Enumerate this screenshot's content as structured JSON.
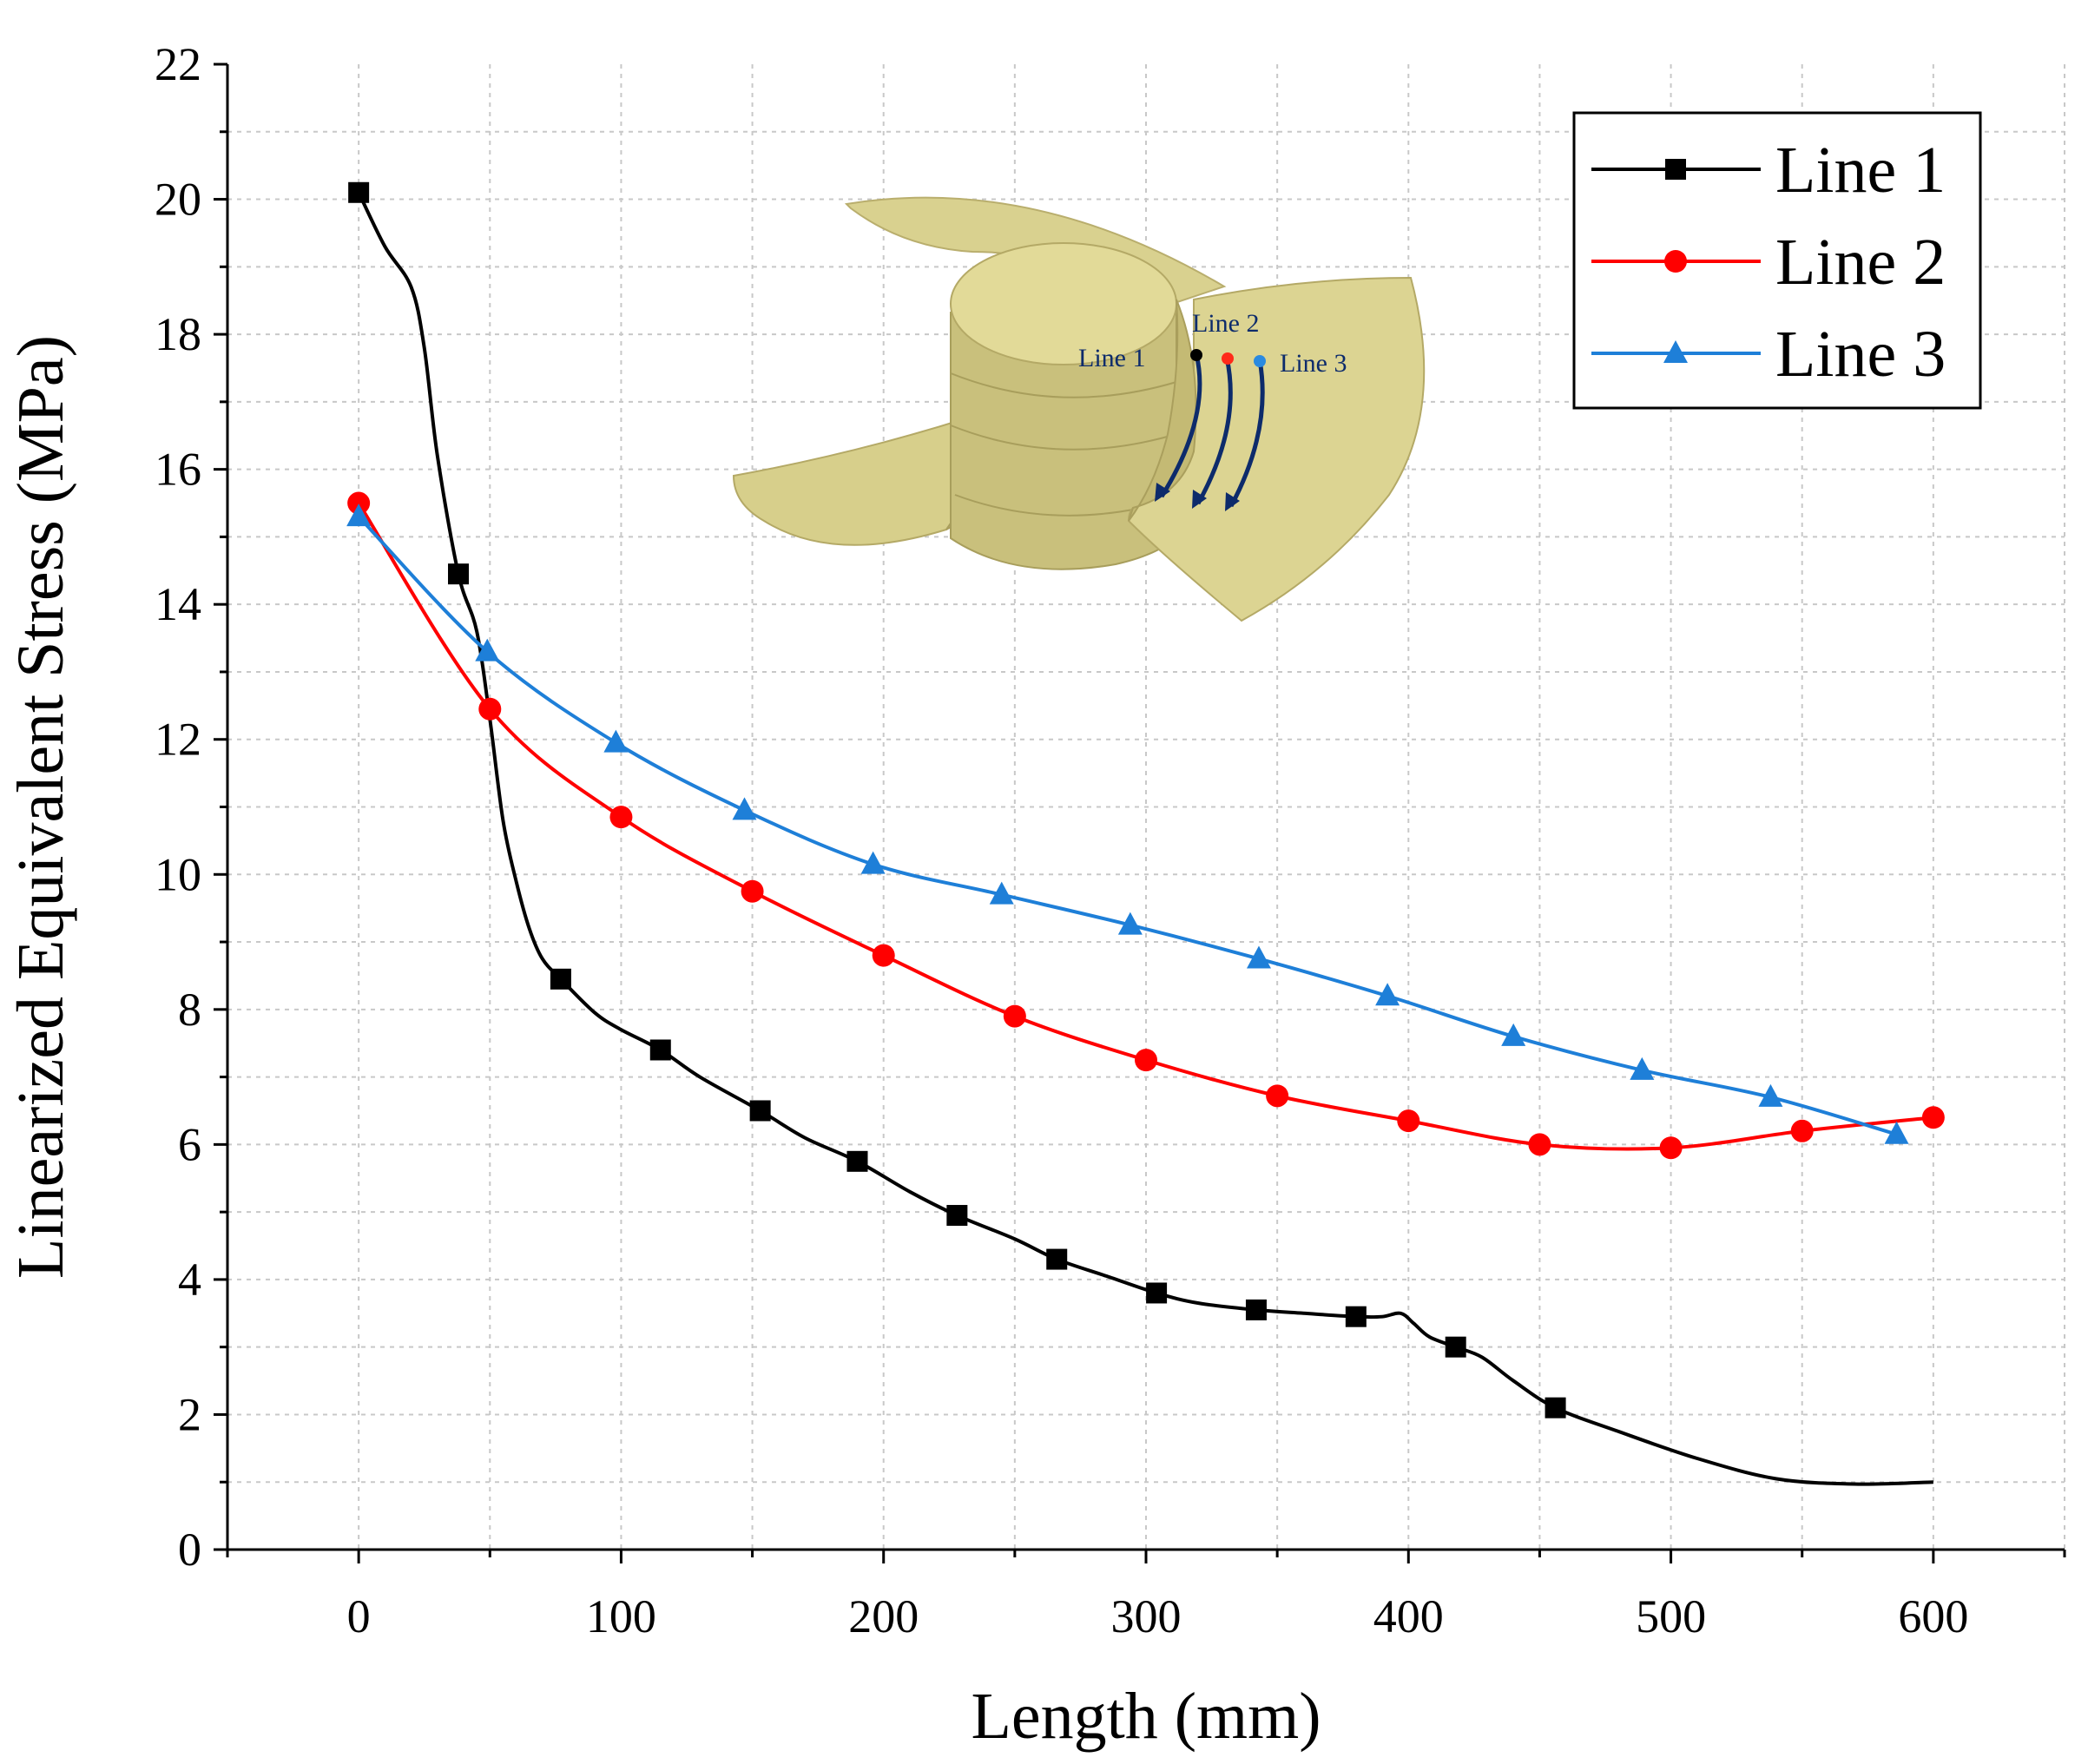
{
  "chart_data": {
    "type": "line",
    "title": "",
    "xlabel": "Length (mm)",
    "ylabel": "Linearized Equivalent Stress (MPa)",
    "xlim": [
      -50,
      650
    ],
    "ylim": [
      0,
      22
    ],
    "xticks": [
      0,
      100,
      200,
      300,
      400,
      500,
      600
    ],
    "yticks": [
      0,
      2,
      4,
      6,
      8,
      10,
      12,
      14,
      16,
      18,
      20,
      22
    ],
    "grid": true,
    "legend_position": "top-right",
    "series": [
      {
        "name": "Line 1",
        "color": "#000000",
        "marker": "square",
        "x": [
          0,
          38,
          77,
          115,
          153,
          190,
          228,
          266,
          304,
          342,
          380,
          418,
          456
        ],
        "y": [
          20.1,
          14.45,
          8.45,
          7.4,
          6.5,
          5.75,
          4.95,
          4.3,
          3.8,
          3.55,
          3.45,
          3.0,
          2.1
        ],
        "curve_x": [
          0,
          10,
          20,
          25,
          30,
          38,
          45,
          50,
          55,
          60,
          65,
          70,
          77,
          90,
          100,
          115,
          130,
          153,
          170,
          190,
          210,
          228,
          250,
          266,
          285,
          304,
          320,
          342,
          360,
          380,
          390,
          397,
          402,
          408,
          418,
          428,
          440,
          456,
          480,
          510,
          540,
          570,
          600
        ],
        "curve_y": [
          20.1,
          19.3,
          18.7,
          17.8,
          16.2,
          14.45,
          13.6,
          12.3,
          10.8,
          9.9,
          9.2,
          8.75,
          8.45,
          7.95,
          7.7,
          7.4,
          7.0,
          6.5,
          6.1,
          5.75,
          5.3,
          4.95,
          4.6,
          4.3,
          4.05,
          3.8,
          3.65,
          3.55,
          3.5,
          3.45,
          3.45,
          3.5,
          3.35,
          3.15,
          3.0,
          2.85,
          2.5,
          2.1,
          1.75,
          1.35,
          1.05,
          0.97,
          1.0
        ]
      },
      {
        "name": "Line 2",
        "color": "#ff0000",
        "marker": "circle",
        "x": [
          0,
          50,
          100,
          150,
          200,
          250,
          300,
          350,
          400,
          450,
          500,
          550,
          600
        ],
        "y": [
          15.5,
          12.45,
          10.85,
          9.75,
          8.8,
          7.9,
          7.25,
          6.72,
          6.35,
          6.0,
          5.95,
          6.2,
          6.4
        ]
      },
      {
        "name": "Line 3",
        "color": "#1e7fd8",
        "marker": "triangle",
        "x": [
          0,
          49,
          98,
          147,
          196,
          245,
          294,
          343,
          392,
          440,
          489,
          538,
          586
        ],
        "y": [
          15.3,
          13.3,
          11.95,
          10.95,
          10.15,
          9.7,
          9.25,
          8.75,
          8.2,
          7.6,
          7.1,
          6.7,
          6.15
        ]
      }
    ],
    "inset": {
      "description_labels": [
        "Line 2",
        "Line 1",
        "Line 3"
      ]
    }
  }
}
